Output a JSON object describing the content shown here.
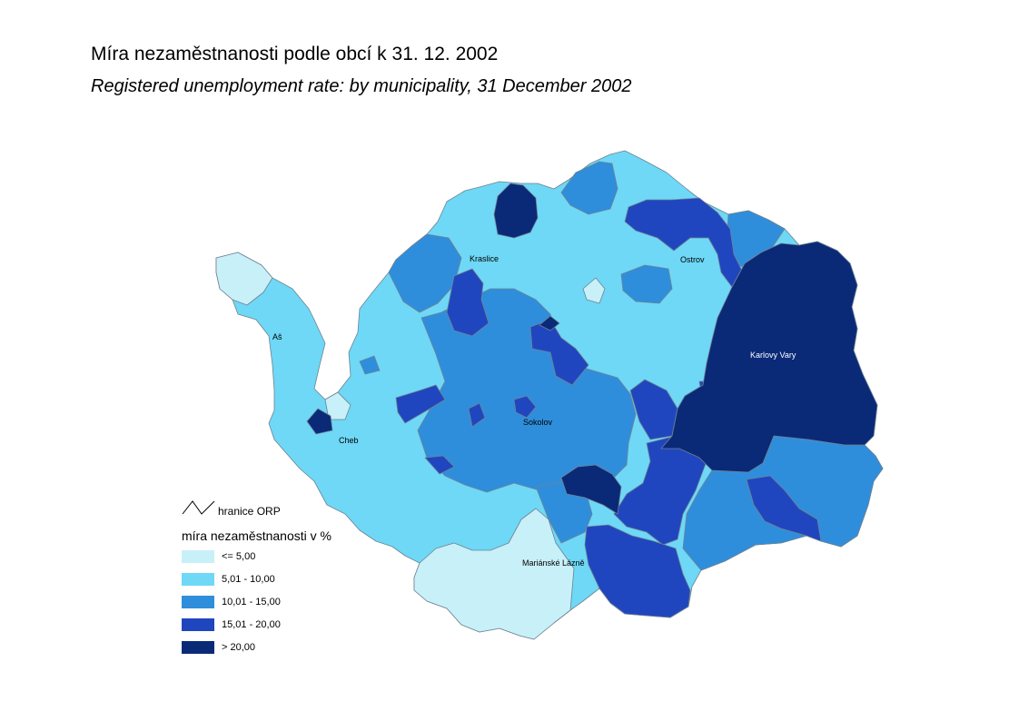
{
  "title": "Míra nezaměstnanosti podle obcí k 31. 12. 2002",
  "subtitle": "Registered unemployment rate: by municipality, 31 December 2002",
  "towns": [
    {
      "name": "Kraslice"
    },
    {
      "name": "Ostrov"
    },
    {
      "name": "Aš"
    },
    {
      "name": "Karlovy Vary"
    },
    {
      "name": "Sokolov"
    },
    {
      "name": "Cheb"
    },
    {
      "name": "Mariánské Lázně"
    }
  ],
  "legend": {
    "border_label": "hranice ORP",
    "heading": "míra nezaměstnanosti v %",
    "classes": [
      {
        "label": "<= 5,00",
        "color": "#c8f0f8"
      },
      {
        "label": "5,01 - 10,00",
        "color": "#6ed8f6"
      },
      {
        "label": "10,01 - 15,00",
        "color": "#2f8edc"
      },
      {
        "label": "15,01 - 20,00",
        "color": "#2046bf"
      },
      {
        "label": "> 20,00",
        "color": "#0a2a78"
      }
    ]
  }
}
